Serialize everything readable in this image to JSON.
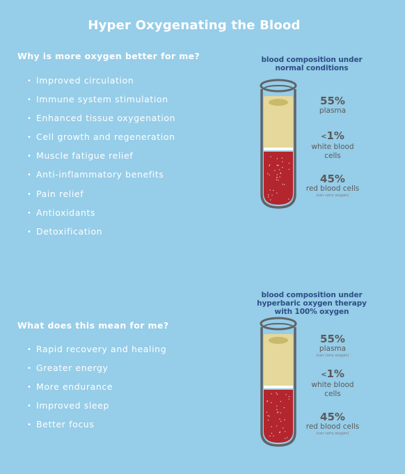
{
  "title": "Hyper Oxygenating the Blood",
  "section1": {
    "question": "Why is more oxygen better for me?",
    "items": [
      "Improved circulation",
      "Immune system stimulation",
      "Enhanced tissue oxygenation",
      "Cell growth and regeneration",
      "Muscle fatigue relief",
      "Anti-inflammatory benefits",
      "Pain relief",
      "Antioxidants",
      "Detoxification"
    ],
    "tube": {
      "title_line1": "blood composition under",
      "title_line2": "normal conditions",
      "title_line3": "",
      "plasma_pct": "55%",
      "plasma_label": "plasma",
      "plasma_note": "",
      "wbc_lt": "<",
      "wbc_pct": "1%",
      "wbc_label_1": "white blood",
      "wbc_label_2": "cells",
      "rbc_pct": "45%",
      "rbc_label": "red blood cells",
      "rbc_note": "(can carry oxygen)"
    }
  },
  "section2": {
    "question": "What does this mean for me?",
    "items": [
      "Rapid recovery and healing",
      "Greater energy",
      "More endurance",
      "Improved sleep",
      "Better focus"
    ],
    "tube": {
      "title_line1": "blood composition under",
      "title_line2": "hyperbaric oxygen therapy",
      "title_line3": "with 100% oxygen",
      "plasma_pct": "55%",
      "plasma_label": "plasma",
      "plasma_note": "(can carry oxygen)",
      "wbc_lt": "<",
      "wbc_pct": "1%",
      "wbc_label_1": "white blood",
      "wbc_label_2": "cells",
      "rbc_pct": "45%",
      "rbc_label": "red blood cells",
      "rbc_note": "(can carry oxygen)"
    }
  },
  "colors": {
    "background": "#96cde8",
    "plasma": "#e6d79a",
    "red_cells": "#b3262d",
    "tube_outline": "#5f6468",
    "title_blue": "#2e4e86"
  }
}
